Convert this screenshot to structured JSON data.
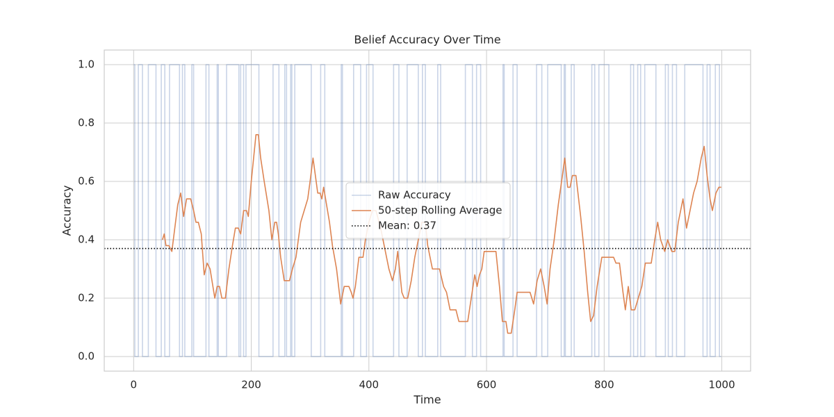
{
  "chart_data": {
    "type": "line",
    "title": "Belief Accuracy Over Time",
    "x_label": "Time",
    "y_label": "Accuracy",
    "xlim": [
      -49.95,
      1048.95
    ],
    "ylim": [
      -0.05,
      1.05
    ],
    "xticks": [
      0,
      200,
      400,
      600,
      800,
      1000
    ],
    "yticks": [
      {
        "value": 0,
        "label": "0.0"
      },
      {
        "value": 0.2,
        "label": "0.2"
      },
      {
        "value": 0.4,
        "label": "0.4"
      },
      {
        "value": 0.6,
        "label": "0.6"
      },
      {
        "value": 0.8,
        "label": "0.8"
      },
      {
        "value": 1,
        "label": "1.0"
      }
    ],
    "grid": true,
    "legend": "center",
    "series": [
      {
        "name": "Raw Accuracy",
        "color": "#4c72b0",
        "opacity": 0.3,
        "x": [
          0,
          2,
          2,
          8,
          8,
          15,
          15,
          25,
          25,
          38,
          38,
          47,
          47,
          53,
          53,
          61,
          61,
          78,
          78,
          83,
          83,
          87,
          87,
          99,
          99,
          102,
          102,
          123,
          123,
          128,
          128,
          142,
          142,
          144,
          144,
          158,
          158,
          179,
          179,
          182,
          182,
          187,
          187,
          191,
          191,
          213,
          213,
          237,
          237,
          247,
          247,
          257,
          257,
          260,
          260,
          267,
          267,
          269,
          269,
          274,
          274,
          302,
          302,
          318,
          318,
          325,
          325,
          353,
          353,
          355,
          355,
          374,
          374,
          386,
          386,
          396,
          396,
          407,
          407,
          442,
          442,
          451,
          451,
          465,
          465,
          484,
          484,
          491,
          491,
          496,
          496,
          517,
          517,
          522,
          522,
          564,
          564,
          576,
          576,
          583,
          583,
          590,
          590,
          628,
          628,
          630,
          630,
          645,
          645,
          652,
          652,
          685,
          685,
          694,
          694,
          704,
          704,
          727,
          727,
          732,
          732,
          734,
          734,
          744,
          744,
          749,
          749,
          779,
          779,
          784,
          784,
          791,
          791,
          808,
          808,
          845,
          845,
          850,
          850,
          857,
          857,
          862,
          862,
          869,
          869,
          888,
          888,
          904,
          904,
          909,
          909,
          916,
          916,
          923,
          923,
          937,
          937,
          968,
          968,
          975,
          975,
          980,
          980,
          989,
          989,
          996,
          996,
          999
        ],
        "values": [
          1,
          1,
          0,
          0,
          1,
          1,
          0,
          0,
          1,
          1,
          0,
          0,
          1,
          1,
          0,
          0,
          1,
          1,
          0,
          0,
          1,
          1,
          0,
          0,
          1,
          1,
          0,
          0,
          1,
          1,
          0,
          0,
          1,
          1,
          0,
          0,
          1,
          1,
          0,
          0,
          1,
          1,
          0,
          0,
          1,
          1,
          0,
          0,
          1,
          1,
          0,
          0,
          1,
          1,
          0,
          0,
          1,
          1,
          0,
          0,
          1,
          1,
          0,
          0,
          1,
          1,
          0,
          0,
          1,
          1,
          0,
          0,
          1,
          1,
          0,
          0,
          1,
          1,
          0,
          0,
          1,
          1,
          0,
          0,
          1,
          1,
          0,
          0,
          1,
          1,
          0,
          0,
          1,
          1,
          0,
          0,
          1,
          1,
          0,
          0,
          1,
          1,
          0,
          0,
          1,
          1,
          0,
          0,
          1,
          1,
          0,
          0,
          1,
          1,
          0,
          0,
          1,
          1,
          0,
          0,
          1,
          1,
          0,
          0,
          1,
          1,
          0,
          0,
          1,
          1,
          0,
          0,
          1,
          1,
          0,
          0,
          1,
          1,
          0,
          0,
          1,
          1,
          0,
          0,
          1,
          1,
          0,
          0,
          1,
          1,
          0,
          0,
          1,
          1,
          0,
          0,
          1,
          1,
          0,
          0,
          1,
          1,
          0,
          0,
          1,
          1,
          0,
          0
        ]
      },
      {
        "name": "50-step Rolling Average",
        "color": "#dd8452",
        "opacity": 1,
        "x": [
          49,
          52,
          55,
          60,
          65,
          70,
          75,
          80,
          85,
          90,
          97,
          102,
          106,
          110,
          115,
          120,
          125,
          130,
          138,
          142,
          146,
          150,
          156,
          162,
          168,
          173,
          178,
          182,
          187,
          192,
          195,
          200,
          208,
          212,
          216,
          222,
          230,
          235,
          240,
          243,
          246,
          250,
          256,
          265,
          270,
          276,
          284,
          290,
          296,
          300,
          305,
          309,
          313,
          317,
          320,
          323,
          328,
          333,
          338,
          345,
          352,
          358,
          366,
          370,
          373,
          377,
          383,
          390,
          394,
          400,
          406,
          412,
          420,
          428,
          434,
          440,
          445,
          449,
          452,
          456,
          460,
          466,
          472,
          478,
          484,
          490,
          496,
          500,
          508,
          520,
          527,
          532,
          538,
          548,
          553,
          568,
          574,
          580,
          584,
          588,
          592,
          596,
          616,
          622,
          627,
          633,
          636,
          642,
          648,
          652,
          674,
          680,
          686,
          692,
          698,
          703,
          708,
          715,
          722,
          729,
          733,
          738,
          742,
          746,
          752,
          760,
          766,
          772,
          777,
          782,
          788,
          796,
          816,
          820,
          826,
          832,
          836,
          841,
          846,
          852,
          858,
          864,
          870,
          880,
          886,
          891,
          896,
          903,
          908,
          915,
          920,
          926,
          934,
          940,
          946,
          952,
          958,
          965,
          970,
          975,
          980,
          984,
          990,
          995,
          999
        ],
        "values": [
          0.4,
          0.42,
          0.38,
          0.38,
          0.36,
          0.44,
          0.52,
          0.56,
          0.48,
          0.54,
          0.54,
          0.5,
          0.46,
          0.46,
          0.42,
          0.28,
          0.32,
          0.3,
          0.2,
          0.24,
          0.24,
          0.2,
          0.2,
          0.3,
          0.38,
          0.44,
          0.44,
          0.42,
          0.5,
          0.5,
          0.48,
          0.6,
          0.76,
          0.76,
          0.68,
          0.6,
          0.5,
          0.4,
          0.46,
          0.46,
          0.42,
          0.34,
          0.26,
          0.26,
          0.3,
          0.34,
          0.46,
          0.5,
          0.54,
          0.6,
          0.68,
          0.62,
          0.56,
          0.56,
          0.54,
          0.58,
          0.52,
          0.46,
          0.38,
          0.3,
          0.18,
          0.24,
          0.24,
          0.22,
          0.2,
          0.24,
          0.34,
          0.34,
          0.4,
          0.46,
          0.5,
          0.5,
          0.44,
          0.36,
          0.3,
          0.26,
          0.3,
          0.36,
          0.3,
          0.22,
          0.2,
          0.2,
          0.26,
          0.34,
          0.4,
          0.46,
          0.46,
          0.38,
          0.3,
          0.3,
          0.24,
          0.22,
          0.16,
          0.16,
          0.12,
          0.12,
          0.2,
          0.28,
          0.24,
          0.28,
          0.3,
          0.36,
          0.36,
          0.24,
          0.12,
          0.12,
          0.08,
          0.08,
          0.16,
          0.22,
          0.22,
          0.18,
          0.26,
          0.3,
          0.24,
          0.18,
          0.3,
          0.4,
          0.52,
          0.62,
          0.68,
          0.58,
          0.58,
          0.62,
          0.62,
          0.48,
          0.36,
          0.22,
          0.12,
          0.14,
          0.24,
          0.34,
          0.34,
          0.32,
          0.32,
          0.22,
          0.16,
          0.24,
          0.16,
          0.16,
          0.2,
          0.24,
          0.32,
          0.32,
          0.4,
          0.46,
          0.4,
          0.36,
          0.4,
          0.36,
          0.36,
          0.46,
          0.54,
          0.44,
          0.5,
          0.56,
          0.6,
          0.68,
          0.72,
          0.62,
          0.54,
          0.5,
          0.56,
          0.58,
          0.58
        ]
      }
    ],
    "hlines": [
      {
        "name": "Mean: 0.37",
        "value": 0.37,
        "color": "#000000"
      }
    ]
  }
}
